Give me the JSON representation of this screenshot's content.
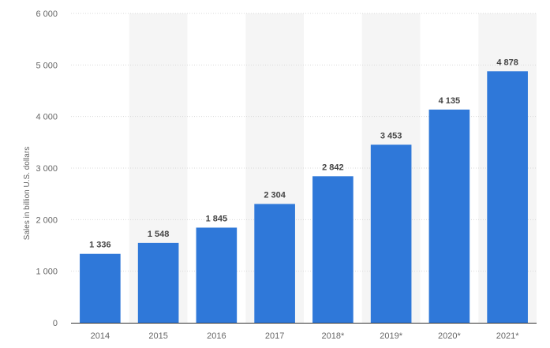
{
  "chart_data": {
    "type": "bar",
    "title": "",
    "xlabel": "",
    "ylabel": "Sales in billion U.S. dollars",
    "categories": [
      "2014",
      "2015",
      "2016",
      "2017",
      "2018*",
      "2019*",
      "2020*",
      "2021*"
    ],
    "values": [
      1336,
      1548,
      1845,
      2304,
      2842,
      3453,
      4135,
      4878
    ],
    "value_labels": [
      "1 336",
      "1 548",
      "1 845",
      "2 304",
      "2 842",
      "3 453",
      "4 135",
      "4 878"
    ],
    "ylim": [
      0,
      6000
    ],
    "yticks": [
      0,
      1000,
      2000,
      3000,
      4000,
      5000,
      6000
    ],
    "ytick_labels": [
      "0",
      "1 000",
      "2 000",
      "3 000",
      "4 000",
      "5 000",
      "6 000"
    ],
    "grid": true,
    "legend": "none",
    "colors": {
      "bar": "#2f78d9",
      "band": "#f5f5f5",
      "grid": "#d9d9d9",
      "axis": "#333333"
    }
  }
}
